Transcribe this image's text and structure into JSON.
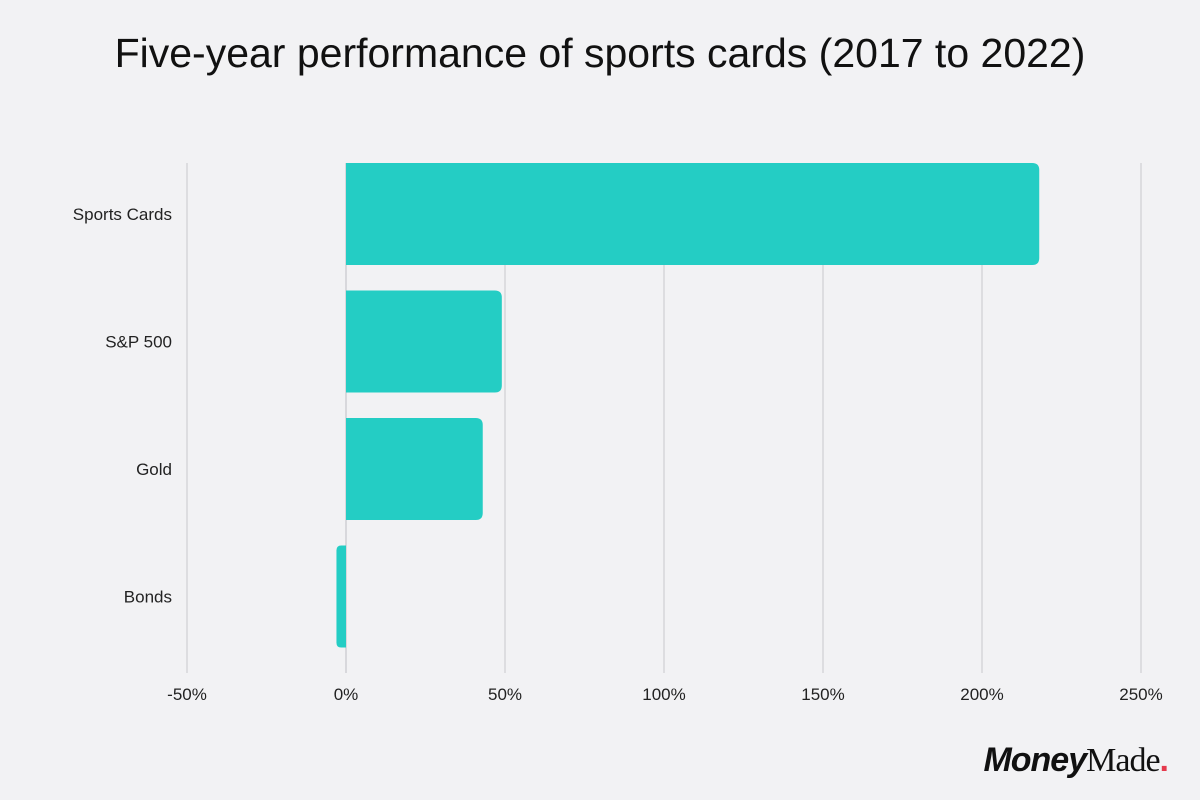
{
  "chart_data": {
    "type": "bar",
    "orientation": "horizontal",
    "title": "Five-year performance of sports cards (2017 to 2022)",
    "categories": [
      "Sports Cards",
      "S&P 500",
      "Gold",
      "Bonds"
    ],
    "values": [
      218,
      49,
      43,
      -3
    ],
    "xlim": [
      -50,
      250
    ],
    "xticks": [
      -50,
      0,
      50,
      100,
      150,
      200,
      250
    ],
    "tick_suffix": "%",
    "xlabel": "",
    "ylabel": "",
    "grid": true,
    "colors": {
      "bar": "#24cdc4",
      "grid": "#c8c8cc",
      "zero_line": "#bfbfc4",
      "text": "#222222"
    }
  },
  "branding": {
    "word1": "Money",
    "word2": "Made",
    "dot": ".",
    "accent": "#e5394c"
  }
}
